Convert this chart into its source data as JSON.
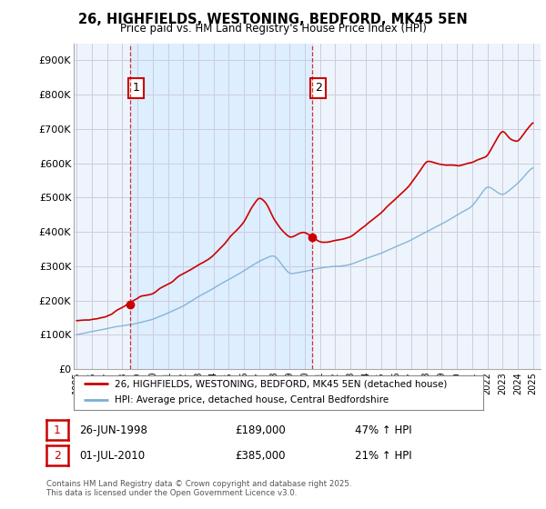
{
  "title": "26, HIGHFIELDS, WESTONING, BEDFORD, MK45 5EN",
  "subtitle": "Price paid vs. HM Land Registry's House Price Index (HPI)",
  "legend_line1": "26, HIGHFIELDS, WESTONING, BEDFORD, MK45 5EN (detached house)",
  "legend_line2": "HPI: Average price, detached house, Central Bedfordshire",
  "annotation1_date": "26-JUN-1998",
  "annotation1_price": "£189,000",
  "annotation1_hpi": "47% ↑ HPI",
  "annotation2_date": "01-JUL-2010",
  "annotation2_price": "£385,000",
  "annotation2_hpi": "21% ↑ HPI",
  "footer": "Contains HM Land Registry data © Crown copyright and database right 2025.\nThis data is licensed under the Open Government Licence v3.0.",
  "hpi_color": "#7bafd4",
  "price_color": "#cc0000",
  "shade_color": "#ddeeff",
  "grid_color": "#ccccdd",
  "background_color": "#ffffff",
  "plot_bg_color": "#eef4fb",
  "ylim": [
    0,
    950000
  ],
  "yticks": [
    0,
    100000,
    200000,
    300000,
    400000,
    500000,
    600000,
    700000,
    800000,
    900000
  ],
  "year_start": 1995,
  "year_end": 2025,
  "purchase1_year": 1998.5,
  "purchase1_price": 189000,
  "purchase2_year": 2010.5,
  "purchase2_price": 385000
}
